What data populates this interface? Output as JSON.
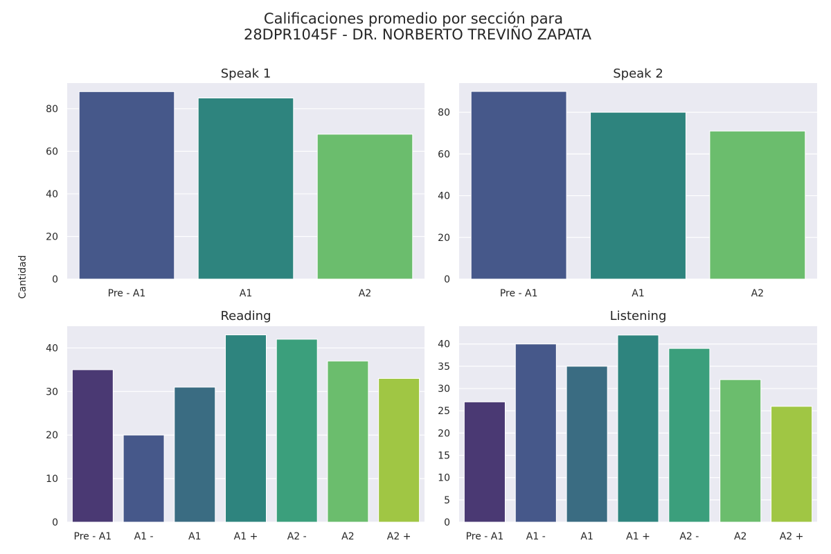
{
  "chart_data": {
    "type": "bar",
    "title_line1": "Calificaciones promedio por sección para",
    "title_line2": "28DPR1045F - DR. NORBERTO TREVIÑO ZAPATA",
    "ylabel": "Cantidad",
    "subplots": [
      {
        "title": "Speak 1",
        "categories": [
          "Pre - A1",
          "A1",
          "A2"
        ],
        "values": [
          88,
          85,
          68
        ],
        "ylim": [
          0,
          92
        ],
        "yticks": [
          0,
          20,
          40,
          60,
          80
        ],
        "colors": [
          "#46588a",
          "#2e847e",
          "#6bbd6d"
        ],
        "grid": true
      },
      {
        "title": "Speak 2",
        "categories": [
          "Pre - A1",
          "A1",
          "A2"
        ],
        "values": [
          90,
          80,
          71
        ],
        "ylim": [
          0,
          94
        ],
        "yticks": [
          0,
          20,
          40,
          60,
          80
        ],
        "colors": [
          "#46588a",
          "#2e847e",
          "#6bbd6d"
        ],
        "grid": true
      },
      {
        "title": "Reading",
        "categories": [
          "Pre - A1",
          "A1 -",
          "A1",
          "A1 +",
          "A2 -",
          "A2",
          "A2 +"
        ],
        "values": [
          35,
          20,
          31,
          43,
          42,
          37,
          33
        ],
        "ylim": [
          0,
          45
        ],
        "yticks": [
          0,
          10,
          20,
          30,
          40
        ],
        "colors": [
          "#4a3973",
          "#46588a",
          "#3a6c82",
          "#2e847e",
          "#3b9f7c",
          "#6bbd6d",
          "#a0c644"
        ],
        "grid": true
      },
      {
        "title": "Listening",
        "categories": [
          "Pre - A1",
          "A1 -",
          "A1",
          "A1 +",
          "A2 -",
          "A2",
          "A2 +"
        ],
        "values": [
          27,
          40,
          35,
          42,
          39,
          32,
          26
        ],
        "ylim": [
          0,
          44
        ],
        "yticks": [
          0,
          5,
          10,
          15,
          20,
          25,
          30,
          35,
          40
        ],
        "colors": [
          "#4a3973",
          "#46588a",
          "#3a6c82",
          "#2e847e",
          "#3b9f7c",
          "#6bbd6d",
          "#a0c644"
        ],
        "grid": true
      }
    ]
  }
}
